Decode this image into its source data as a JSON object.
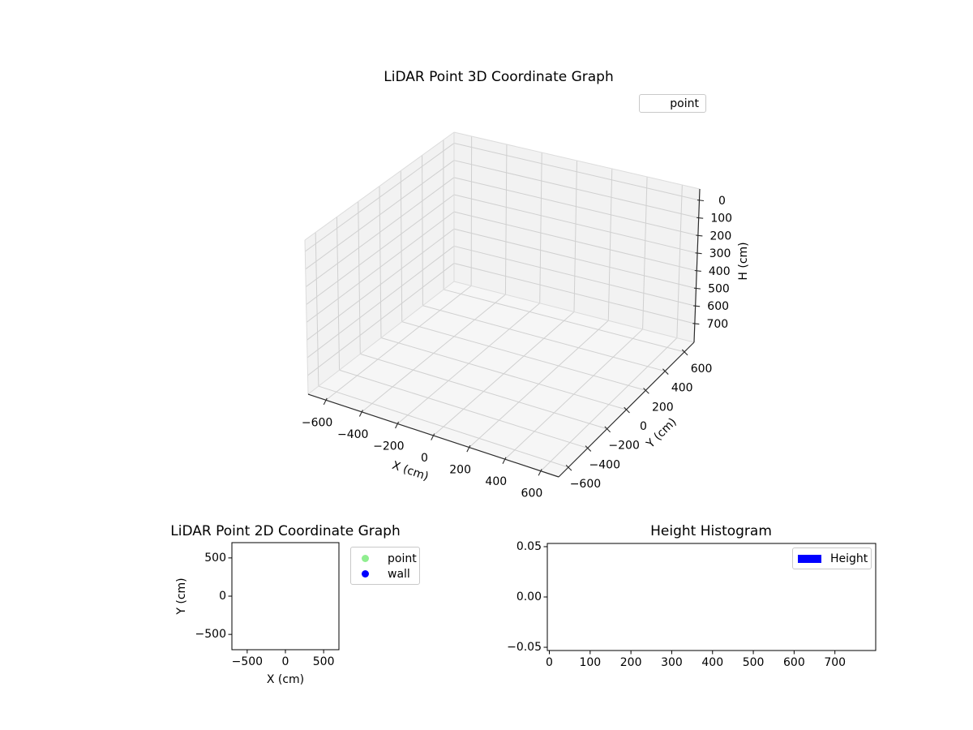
{
  "figure": {
    "background": "#ffffff"
  },
  "chart_data": [
    {
      "id": "lidar-3d",
      "type": "scatter",
      "projection": "3d",
      "title": "LiDAR Point 3D Coordinate Graph",
      "xlabel": "X (cm)",
      "ylabel": "Y (cm)",
      "zlabel": "H (cm)",
      "xticks": [
        -600,
        -400,
        -200,
        0,
        200,
        400,
        600
      ],
      "yticks": [
        -600,
        -400,
        -200,
        0,
        200,
        400,
        600
      ],
      "zticks": [
        0,
        100,
        200,
        300,
        400,
        500,
        600,
        700
      ],
      "zaxis_inverted": true,
      "grid": true,
      "pane_wall_color": "#f2f2f2",
      "pane_floor_color": "#f6f6f6",
      "grid_color": "#d0d0d0",
      "edge_color": "#dcdcdc",
      "axis_line_color": "#2b2b2b",
      "legend": {
        "position": "upper right",
        "entries": [
          {
            "label": "point",
            "marker": "none-visible"
          }
        ]
      },
      "series": [
        {
          "name": "point",
          "points": []
        }
      ]
    },
    {
      "id": "lidar-2d",
      "type": "scatter",
      "title": "LiDAR Point 2D Coordinate Graph",
      "xlabel": "X (cm)",
      "ylabel": "Y (cm)",
      "xticks": [
        -500,
        0,
        500
      ],
      "yticks": [
        500,
        0,
        -500
      ],
      "xlim": [
        -700,
        700
      ],
      "ylim": [
        -700,
        700
      ],
      "grid": false,
      "legend": {
        "position": "right of upper-right corner",
        "entries": [
          {
            "label": "point",
            "color": "#90ee90",
            "marker": "circle"
          },
          {
            "label": "wall",
            "color": "#0000ff",
            "marker": "circle"
          }
        ]
      },
      "series": [
        {
          "name": "point",
          "color": "#90ee90",
          "points": []
        },
        {
          "name": "wall",
          "color": "#0000ff",
          "points": []
        }
      ]
    },
    {
      "id": "height-histogram",
      "type": "bar",
      "title": "Height Histogram",
      "xticks": [
        0,
        100,
        200,
        300,
        400,
        500,
        600,
        700
      ],
      "yticks": [
        0.05,
        0,
        -0.05
      ],
      "ytick_labels": [
        "0.05",
        "0.00",
        "−0.05"
      ],
      "grid": false,
      "legend": {
        "position": "upper right",
        "entries": [
          {
            "label": "Height",
            "color": "#0000ff",
            "marker": "rect"
          }
        ]
      },
      "values": []
    }
  ]
}
